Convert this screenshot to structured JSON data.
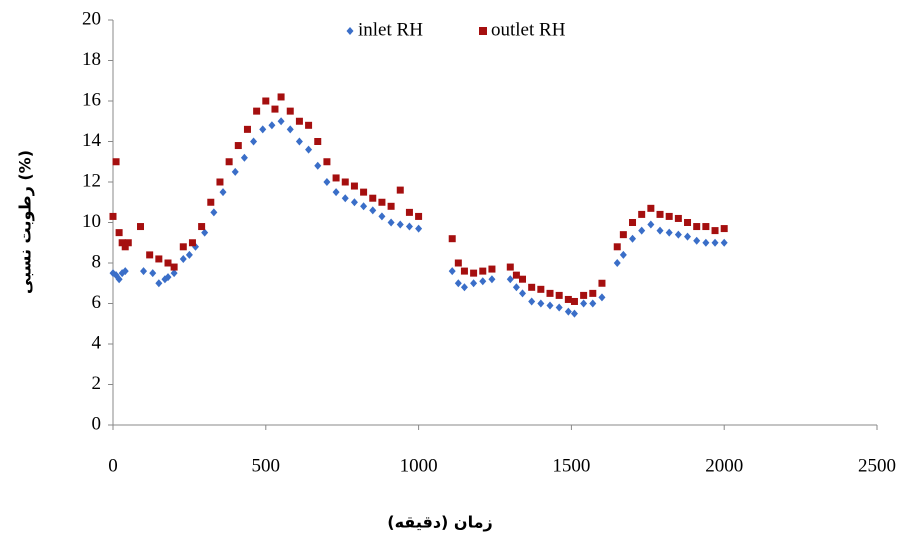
{
  "chart_data": {
    "type": "scatter",
    "xlabel": "زمان (دقیقه)",
    "ylabel": "رطوبت نسبی (%)",
    "xlim": [
      0,
      2500
    ],
    "xticks": [
      0,
      500,
      1000,
      1500,
      2000,
      2500
    ],
    "ylim": [
      0,
      20
    ],
    "yticks": [
      0,
      2,
      4,
      6,
      8,
      10,
      12,
      14,
      16,
      18,
      20
    ],
    "legend": "top",
    "series": [
      {
        "name": "inlet RH",
        "color": "#3a6ec8",
        "marker": "diamond",
        "x": [
          0,
          10,
          20,
          30,
          40,
          100,
          130,
          150,
          170,
          180,
          200,
          230,
          250,
          270,
          300,
          330,
          360,
          400,
          430,
          460,
          490,
          520,
          550,
          580,
          610,
          640,
          670,
          700,
          730,
          760,
          790,
          820,
          850,
          880,
          910,
          940,
          970,
          1000,
          1110,
          1130,
          1150,
          1180,
          1210,
          1240,
          1300,
          1320,
          1340,
          1370,
          1400,
          1430,
          1460,
          1490,
          1510,
          1540,
          1570,
          1600,
          1650,
          1670,
          1700,
          1730,
          1760,
          1790,
          1820,
          1850,
          1880,
          1910,
          1940,
          1970,
          2000
        ],
        "values": [
          7.5,
          7.4,
          7.2,
          7.5,
          7.6,
          7.6,
          7.5,
          7.0,
          7.2,
          7.3,
          7.5,
          8.2,
          8.4,
          8.8,
          9.5,
          10.5,
          11.5,
          12.5,
          13.2,
          14.0,
          14.6,
          14.8,
          15.0,
          14.6,
          14.0,
          13.6,
          12.8,
          12.0,
          11.5,
          11.2,
          11.0,
          10.8,
          10.6,
          10.3,
          10.0,
          9.9,
          9.8,
          9.7,
          7.6,
          7.0,
          6.8,
          7.0,
          7.1,
          7.2,
          7.2,
          6.8,
          6.5,
          6.1,
          6.0,
          5.9,
          5.8,
          5.6,
          5.5,
          6.0,
          6.0,
          6.3,
          8.0,
          8.4,
          9.2,
          9.6,
          9.9,
          9.6,
          9.5,
          9.4,
          9.3,
          9.1,
          9.0,
          9.0,
          9.0
        ]
      },
      {
        "name": "outlet RH",
        "color": "#a50f0f",
        "marker": "square",
        "x": [
          0,
          10,
          20,
          30,
          40,
          50,
          90,
          120,
          150,
          180,
          200,
          230,
          260,
          290,
          320,
          350,
          380,
          410,
          440,
          470,
          500,
          530,
          550,
          580,
          610,
          640,
          670,
          700,
          730,
          760,
          790,
          820,
          850,
          880,
          910,
          940,
          970,
          1000,
          1110,
          1130,
          1150,
          1180,
          1210,
          1240,
          1300,
          1320,
          1340,
          1370,
          1400,
          1430,
          1460,
          1490,
          1510,
          1540,
          1570,
          1600,
          1650,
          1670,
          1700,
          1730,
          1760,
          1790,
          1820,
          1850,
          1880,
          1910,
          1940,
          1970,
          2000
        ],
        "values": [
          10.3,
          13.0,
          9.5,
          9.0,
          8.8,
          9.0,
          9.8,
          8.4,
          8.2,
          8.0,
          7.8,
          8.8,
          9.0,
          9.8,
          11.0,
          12.0,
          13.0,
          13.8,
          14.6,
          15.5,
          16.0,
          15.6,
          16.2,
          15.5,
          15.0,
          14.8,
          14.0,
          13.0,
          12.2,
          12.0,
          11.8,
          11.5,
          11.2,
          11.0,
          10.8,
          11.6,
          10.5,
          10.3,
          9.2,
          8.0,
          7.6,
          7.5,
          7.6,
          7.7,
          7.8,
          7.4,
          7.2,
          6.8,
          6.7,
          6.5,
          6.4,
          6.2,
          6.1,
          6.4,
          6.5,
          7.0,
          8.8,
          9.4,
          10.0,
          10.4,
          10.7,
          10.4,
          10.3,
          10.2,
          10.0,
          9.8,
          9.8,
          9.6,
          9.7
        ]
      }
    ]
  }
}
